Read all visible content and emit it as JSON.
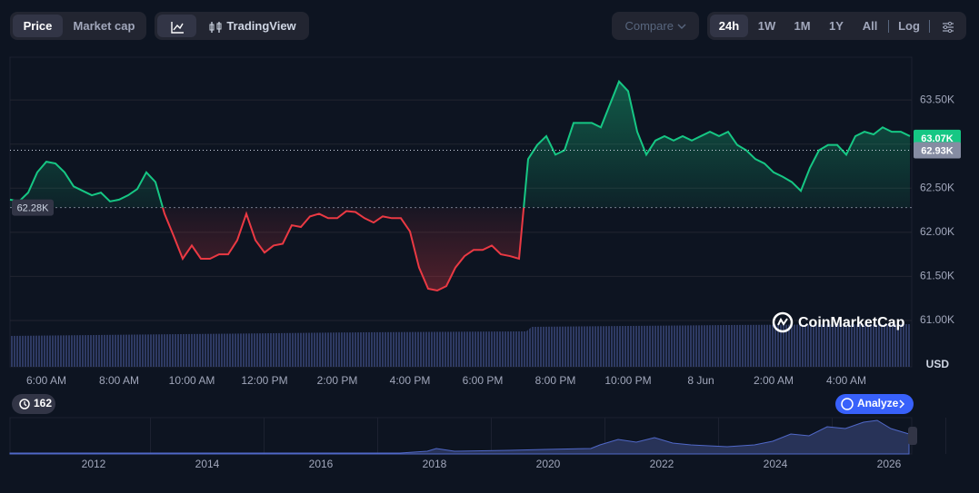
{
  "toolbar": {
    "type_tabs": [
      "Price",
      "Market cap"
    ],
    "tools": [
      "TradingView"
    ],
    "compare": "Compare",
    "ranges": [
      "24h",
      "1W",
      "1M",
      "1Y",
      "All"
    ],
    "log": "Log"
  },
  "chart_data": {
    "type": "line",
    "categories": [
      null,
      null,
      null,
      null,
      "6:00 AM",
      null,
      null,
      null,
      null,
      null,
      null,
      null,
      "8:00 AM",
      null,
      null,
      null,
      null,
      null,
      null,
      null,
      "10:00 AM",
      null,
      null,
      null,
      null,
      null,
      null,
      null,
      "12:00 PM",
      null,
      null,
      null,
      null,
      null,
      null,
      null,
      "2:00 PM",
      null,
      null,
      null,
      null,
      null,
      null,
      null,
      "4:00 PM",
      null,
      null,
      null,
      null,
      null,
      null,
      null,
      "6:00 PM",
      null,
      null,
      null,
      null,
      null,
      null,
      null,
      "8:00 PM",
      null,
      null,
      null,
      null,
      null,
      null,
      null,
      "10:00 PM",
      null,
      null,
      null,
      null,
      null,
      null,
      null,
      "8 Jun",
      null,
      null,
      null,
      null,
      null,
      null,
      null,
      "2:00 AM",
      null,
      null,
      null,
      null,
      null,
      null,
      null,
      "4:00 AM",
      null,
      null,
      null,
      null,
      null,
      null,
      null
    ],
    "values": [
      62370,
      62350,
      62450,
      62680,
      62800,
      62780,
      62680,
      62520,
      62470,
      62420,
      62450,
      62350,
      62370,
      62420,
      62490,
      62680,
      62570,
      62210,
      61960,
      61700,
      61850,
      61700,
      61700,
      61750,
      61750,
      61910,
      62210,
      61910,
      61770,
      61850,
      61870,
      62080,
      62060,
      62180,
      62210,
      62160,
      62160,
      62240,
      62230,
      62160,
      62110,
      62180,
      62160,
      62160,
      62010,
      61600,
      61360,
      61340,
      61390,
      61600,
      61730,
      61800,
      61800,
      61850,
      61750,
      61730,
      61700,
      62830,
      62990,
      63090,
      62880,
      62930,
      63240,
      63240,
      63240,
      63190,
      63450,
      63710,
      63600,
      63140,
      62880,
      63040,
      63090,
      63040,
      63090,
      63040,
      63090,
      63140,
      63090,
      63140,
      62990,
      62930,
      62830,
      62780,
      62680,
      62630,
      62570,
      62470,
      62730,
      62930,
      62990,
      62990,
      62880,
      63090,
      63140,
      63110,
      63190,
      63140,
      63140,
      63090
    ],
    "up_color": "#16c784",
    "down_color": "#ea3943",
    "baseline": {
      "value": 62280,
      "label": "62.28K"
    },
    "price_tags": [
      {
        "value": 63070,
        "label": "63.07K",
        "color": "#16c784"
      },
      {
        "value": 62930,
        "label": "62.93K",
        "color": "#858ca2"
      }
    ],
    "ylim": [
      60475,
      63985
    ],
    "yticks": [
      {
        "value": 61000,
        "label": "61.00K"
      },
      {
        "value": 61500,
        "label": "61.50K"
      },
      {
        "value": 62000,
        "label": "62.00K"
      },
      {
        "value": 62500,
        "label": "62.50K"
      },
      {
        "value": 63000,
        "label": "63.00K"
      },
      {
        "value": 63500,
        "label": "63.50K"
      }
    ],
    "unit": "USD",
    "watermark": "CoinMarketCap",
    "grid": true
  },
  "history_badge": "162",
  "analyze": "Analyze",
  "navigator": {
    "years": [
      "2012",
      "2014",
      "2016",
      "2018",
      "2020",
      "2022",
      "2024",
      "2026"
    ]
  }
}
